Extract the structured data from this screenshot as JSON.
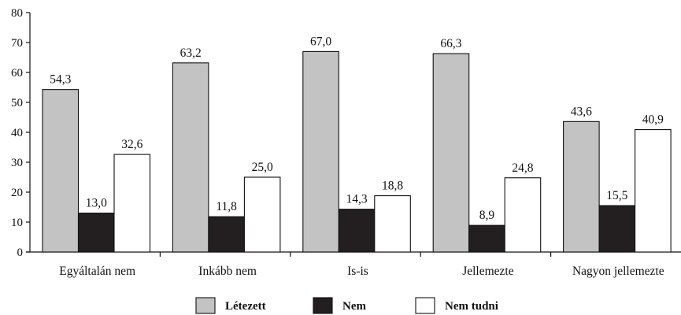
{
  "chart_data": {
    "type": "bar",
    "categories": [
      "Egyáltalán nem",
      "Inkább nem",
      "Is-is",
      "Jellemezte",
      "Nagyon jellemezte"
    ],
    "series": [
      {
        "name": "Létezett",
        "values": [
          54.3,
          63.2,
          67.0,
          66.3,
          43.6
        ],
        "labels": [
          "54,3",
          "63,2",
          "67,0",
          "66,3",
          "43,6"
        ],
        "color": "#c3c3c3"
      },
      {
        "name": "Nem",
        "values": [
          13.0,
          11.8,
          14.3,
          8.9,
          15.5
        ],
        "labels": [
          "13,0",
          "11,8",
          "14,3",
          "8,9",
          "15,5"
        ],
        "color": "#231f20"
      },
      {
        "name": "Nem tudni",
        "values": [
          32.6,
          25.0,
          18.8,
          24.8,
          40.9
        ],
        "labels": [
          "32,6",
          "25,0",
          "18,8",
          "24,8",
          "40,9"
        ],
        "color": "#ffffff"
      }
    ],
    "ylim": [
      0,
      80
    ],
    "yticks": [
      0,
      10,
      20,
      30,
      40,
      50,
      60,
      70,
      80
    ],
    "grid": false,
    "legend_position": "bottom",
    "title": "",
    "xlabel": "",
    "ylabel": ""
  }
}
